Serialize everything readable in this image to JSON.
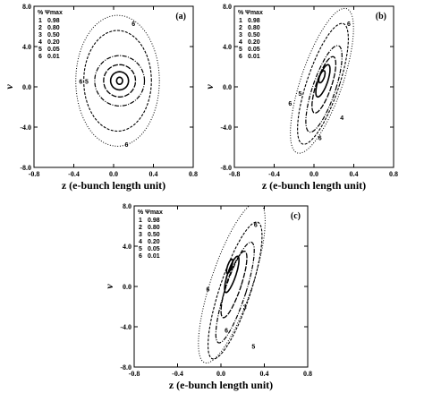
{
  "chart_data": [
    {
      "type": "contour",
      "panel": "(a)",
      "xlabel": "z (e-bunch length unit)",
      "ylabel": "ν",
      "xlim": [
        -0.8,
        0.8
      ],
      "ylim": [
        -8.0,
        8.0
      ],
      "x_ticks": [
        "-0.8",
        "-0.4",
        "0.0",
        "0.4",
        "0.8"
      ],
      "y_ticks": [
        "8.0",
        "4.0",
        "0.0",
        "-4.0",
        "-8.0"
      ],
      "legend_header": "% Ψmax",
      "levels": [
        {
          "id": "1",
          "value": "0.98"
        },
        {
          "id": "2",
          "value": "0.80"
        },
        {
          "id": "3",
          "value": "0.50"
        },
        {
          "id": "4",
          "value": "0.20"
        },
        {
          "id": "5",
          "value": "0.05"
        },
        {
          "id": "6",
          "value": "0.01"
        }
      ],
      "contours": [
        {
          "level": "1",
          "cx": 0.06,
          "cy": 0.6,
          "rx": 0.03,
          "ry": 0.35,
          "tilt": 0
        },
        {
          "level": "2",
          "cx": 0.06,
          "cy": 0.6,
          "rx": 0.09,
          "ry": 0.9,
          "tilt": 0
        },
        {
          "level": "3",
          "cx": 0.06,
          "cy": 0.6,
          "rx": 0.16,
          "ry": 1.6,
          "tilt": 0
        },
        {
          "level": "4",
          "cx": 0.06,
          "cy": 0.6,
          "rx": 0.25,
          "ry": 2.5,
          "tilt": 0
        },
        {
          "level": "5",
          "cx": 0.04,
          "cy": 0.6,
          "rx": 0.34,
          "ry": 5.0,
          "tilt": 0
        },
        {
          "level": "6",
          "cx": 0.04,
          "cy": 0.6,
          "rx": 0.42,
          "ry": 6.5,
          "tilt": 0
        }
      ],
      "contour_labels": [
        {
          "text": "6",
          "x": 0.2,
          "y": 6.3
        },
        {
          "text": "6",
          "x": -0.33,
          "y": 0.6
        },
        {
          "text": "5",
          "x": -0.27,
          "y": 0.6
        },
        {
          "text": "6",
          "x": 0.13,
          "y": -5.7
        }
      ]
    },
    {
      "type": "contour",
      "panel": "(b)",
      "xlabel": "z (e-bunch length unit)",
      "ylabel": "ν",
      "xlim": [
        -0.8,
        0.8
      ],
      "ylim": [
        -8.0,
        8.0
      ],
      "x_ticks": [
        "-0.8",
        "-0.4",
        "0.0",
        "0.4",
        "0.8"
      ],
      "y_ticks": [
        "8.0",
        "4.0",
        "0.0",
        "-4.0",
        "-8.0"
      ],
      "legend_header": "% Ψmax",
      "levels": [
        {
          "id": "1",
          "value": "0.98"
        },
        {
          "id": "2",
          "value": "0.80"
        },
        {
          "id": "3",
          "value": "0.50"
        },
        {
          "id": "4",
          "value": "0.20"
        },
        {
          "id": "5",
          "value": "0.05"
        },
        {
          "id": "6",
          "value": "0.01"
        }
      ],
      "contours": [
        {
          "level": "1",
          "cx": 0.08,
          "cy": 1.0,
          "rx": 0.025,
          "ry": 0.6,
          "tilt": -30
        },
        {
          "level": "2",
          "cx": 0.09,
          "cy": 0.6,
          "rx": 0.05,
          "ry": 1.6,
          "tilt": -30
        },
        {
          "level": "3",
          "cx": 0.1,
          "cy": 0.2,
          "rx": 0.08,
          "ry": 2.8,
          "tilt": -30
        },
        {
          "level": "4",
          "cx": 0.1,
          "cy": -0.2,
          "rx": 0.12,
          "ry": 4.3,
          "tilt": -30
        },
        {
          "level": "5",
          "cx": 0.09,
          "cy": 0.3,
          "rx": 0.17,
          "ry": 6.0,
          "tilt": -30
        },
        {
          "level": "6",
          "cx": 0.08,
          "cy": 0.6,
          "rx": 0.22,
          "ry": 7.2,
          "tilt": -30
        }
      ],
      "contour_labels": [
        {
          "text": "6",
          "x": 0.35,
          "y": 6.3
        },
        {
          "text": "5",
          "x": -0.14,
          "y": -0.6
        },
        {
          "text": "6",
          "x": -0.24,
          "y": -1.6
        },
        {
          "text": "4",
          "x": 0.28,
          "y": -3.0
        },
        {
          "text": "6",
          "x": 0.06,
          "y": -5.0
        }
      ]
    },
    {
      "type": "contour",
      "panel": "(c)",
      "xlabel": "z (e-bunch length unit)",
      "ylabel": "ν",
      "xlim": [
        -0.8,
        0.8
      ],
      "ylim": [
        -8.0,
        8.0
      ],
      "x_ticks": [
        "-0.8",
        "-0.4",
        "0.0",
        "0.4",
        "0.8"
      ],
      "y_ticks": [
        "8.0",
        "4.0",
        "0.0",
        "-4.0",
        "-8.0"
      ],
      "legend_header": "% Ψmax",
      "levels": [
        {
          "id": "1",
          "value": "0.98"
        },
        {
          "id": "2",
          "value": "0.80"
        },
        {
          "id": "3",
          "value": "0.50"
        },
        {
          "id": "4",
          "value": "0.20"
        },
        {
          "id": "5",
          "value": "0.05"
        },
        {
          "id": "6",
          "value": "0.01"
        }
      ],
      "contours": [
        {
          "level": "1",
          "cx": 0.08,
          "cy": 2.0,
          "rx": 0.02,
          "ry": 0.7,
          "tilt": -28
        },
        {
          "level": "2",
          "cx": 0.1,
          "cy": 1.2,
          "rx": 0.04,
          "ry": 1.8,
          "tilt": -28
        },
        {
          "level": "3",
          "cx": 0.12,
          "cy": 0.2,
          "rx": 0.07,
          "ry": 3.3,
          "tilt": -28
        },
        {
          "level": "4",
          "cx": 0.13,
          "cy": -0.6,
          "rx": 0.1,
          "ry": 5.0,
          "tilt": -28
        },
        {
          "level": "5",
          "cx": 0.13,
          "cy": -0.4,
          "rx": 0.15,
          "ry": 6.8,
          "tilt": -28
        },
        {
          "level": "6",
          "cx": 0.1,
          "cy": 0.4,
          "rx": 0.2,
          "ry": 8.0,
          "tilt": -28
        }
      ],
      "contour_labels": [
        {
          "text": "6",
          "x": 0.32,
          "y": 6.2
        },
        {
          "text": "6",
          "x": -0.12,
          "y": -0.2
        },
        {
          "text": "3",
          "x": 0.22,
          "y": -2.0
        },
        {
          "text": "6",
          "x": 0.05,
          "y": -4.3
        },
        {
          "text": "5",
          "x": 0.3,
          "y": -5.9
        }
      ]
    }
  ]
}
